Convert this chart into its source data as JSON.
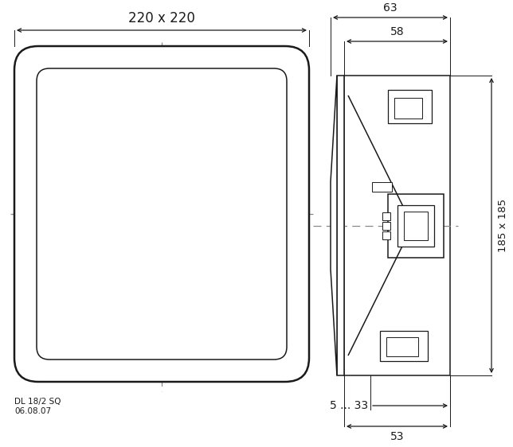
{
  "bg_color": "#ffffff",
  "line_color": "#1a1a1a",
  "dash_color": "#888888",
  "figsize": [
    6.44,
    5.62
  ],
  "dpi": 100,
  "labels": {
    "220x220": {
      "text": "220 x 220",
      "fontsize": 12
    },
    "185x185": {
      "text": "185 x 185",
      "fontsize": 9.5
    },
    "63": {
      "text": "63",
      "fontsize": 10
    },
    "58": {
      "text": "58",
      "fontsize": 10
    },
    "5_33": {
      "text": "5 ... 33",
      "fontsize": 10
    },
    "53": {
      "text": "53",
      "fontsize": 10
    },
    "DL": {
      "text": "DL 18/2 SQ",
      "fontsize": 7.5
    },
    "date": {
      "text": "06.08.07",
      "fontsize": 7.5
    }
  }
}
